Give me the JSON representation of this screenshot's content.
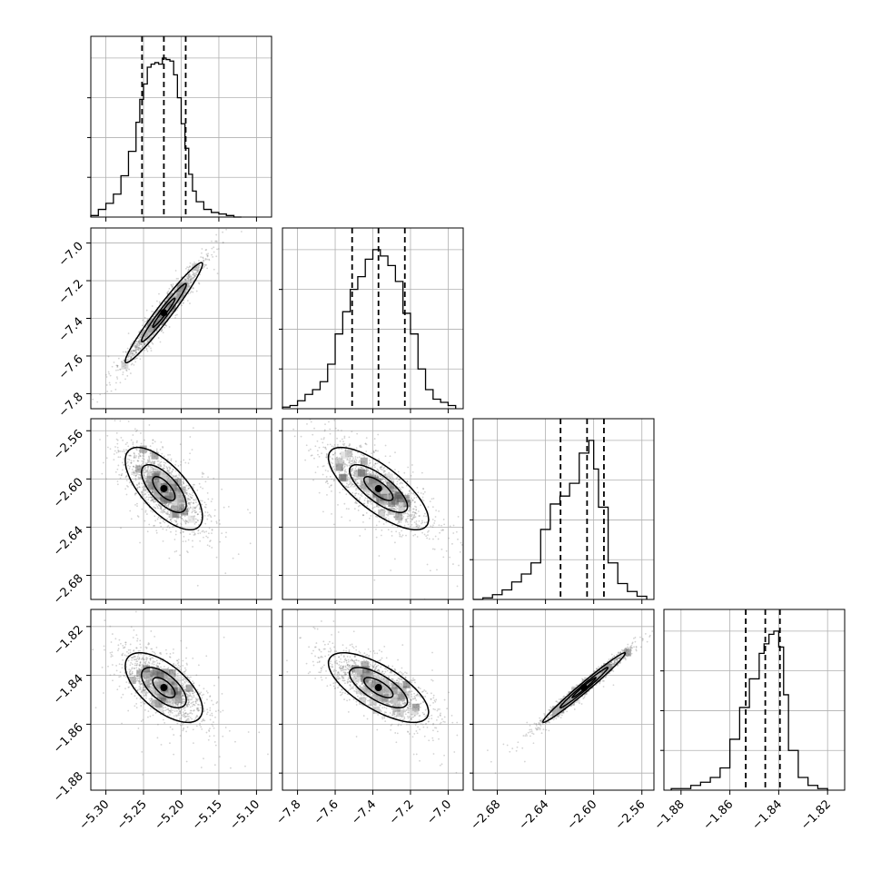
{
  "colors": {
    "hist": "#000000",
    "grid": "#b0b0b0",
    "background": "#ffffff",
    "scatter": "#808080"
  },
  "chart_data": {
    "type": "corner",
    "grid": true,
    "parameters": [
      {
        "range": [
          -5.32,
          -5.08
        ],
        "ticks": [
          -5.3,
          -5.25,
          -5.2,
          -5.15,
          -5.1
        ],
        "tick_labels": [
          "−5.30",
          "−5.25",
          "−5.20",
          "−5.15",
          "−5.10"
        ],
        "quantiles": [
          -5.252,
          -5.223,
          -5.194
        ],
        "hist_bins": [
          -5.32,
          -5.31,
          -5.3,
          -5.29,
          -5.28,
          -5.27,
          -5.26,
          -5.255,
          -5.25,
          -5.245,
          -5.24,
          -5.235,
          -5.23,
          -5.225,
          -5.22,
          -5.215,
          -5.21,
          -5.205,
          -5.2,
          -5.195,
          -5.19,
          -5.185,
          -5.18,
          -5.17,
          -5.16,
          -5.15,
          -5.14,
          -5.13,
          -5.12
        ],
        "hist_counts": [
          0.01,
          0.05,
          0.09,
          0.15,
          0.27,
          0.43,
          0.62,
          0.77,
          0.87,
          0.98,
          1.0,
          1.01,
          1.0,
          1.04,
          1.03,
          1.02,
          0.93,
          0.78,
          0.61,
          0.45,
          0.28,
          0.17,
          0.1,
          0.05,
          0.03,
          0.02,
          0.01,
          0.0
        ]
      },
      {
        "range": [
          -7.88,
          -6.92
        ],
        "ticks": [
          -7.8,
          -7.6,
          -7.4,
          -7.2,
          -7.0
        ],
        "tick_labels": [
          "−7.8",
          "−7.6",
          "−7.4",
          "−7.2",
          "−7.0"
        ],
        "quantiles": [
          -7.51,
          -7.37,
          -7.23
        ],
        "hist_bins": [
          -7.88,
          -7.84,
          -7.8,
          -7.76,
          -7.72,
          -7.68,
          -7.64,
          -7.6,
          -7.56,
          -7.52,
          -7.48,
          -7.44,
          -7.4,
          -7.36,
          -7.32,
          -7.28,
          -7.24,
          -7.2,
          -7.16,
          -7.12,
          -7.08,
          -7.04,
          -7.0,
          -6.96
        ],
        "hist_counts": [
          0.01,
          0.02,
          0.05,
          0.09,
          0.12,
          0.17,
          0.28,
          0.47,
          0.61,
          0.75,
          0.83,
          0.94,
          1.0,
          0.96,
          0.9,
          0.8,
          0.6,
          0.47,
          0.25,
          0.12,
          0.06,
          0.04,
          0.02
        ]
      },
      {
        "range": [
          -2.7,
          -2.55
        ],
        "ticks": [
          -2.68,
          -2.64,
          -2.6,
          -2.56
        ],
        "tick_labels": [
          "−2.68",
          "−2.64",
          "−2.60",
          "−2.56"
        ],
        "quantiles": [
          -2.6275,
          -2.6055,
          -2.5915
        ],
        "hist_bins": [
          -2.7,
          -2.692,
          -2.684,
          -2.676,
          -2.668,
          -2.66,
          -2.652,
          -2.644,
          -2.636,
          -2.628,
          -2.62,
          -2.612,
          -2.604,
          -2.6,
          -2.596,
          -2.588,
          -2.58,
          -2.572,
          -2.564,
          -2.556
        ],
        "hist_counts": [
          0.0,
          0.01,
          0.03,
          0.06,
          0.11,
          0.16,
          0.23,
          0.44,
          0.6,
          0.65,
          0.73,
          0.92,
          1.0,
          0.82,
          0.58,
          0.23,
          0.1,
          0.05,
          0.02
        ]
      },
      {
        "range": [
          -1.887,
          -1.813
        ],
        "ticks": [
          -1.88,
          -1.86,
          -1.84,
          -1.82
        ],
        "tick_labels": [
          "−1.88",
          "−1.86",
          "−1.84",
          "−1.82"
        ],
        "quantiles": [
          -1.8535,
          -1.8455,
          -1.8395
        ],
        "hist_bins": [
          -1.884,
          -1.88,
          -1.876,
          -1.872,
          -1.868,
          -1.864,
          -1.86,
          -1.856,
          -1.852,
          -1.848,
          -1.846,
          -1.844,
          -1.842,
          -1.84,
          -1.838,
          -1.836,
          -1.832,
          -1.828,
          -1.824,
          -1.82
        ],
        "hist_counts": [
          0.01,
          0.01,
          0.03,
          0.05,
          0.08,
          0.14,
          0.32,
          0.52,
          0.7,
          0.86,
          0.92,
          0.98,
          1.0,
          0.9,
          0.6,
          0.25,
          0.08,
          0.03,
          0.01
        ]
      }
    ],
    "pairs": [
      {
        "x": 0,
        "y": 1,
        "center": [
          -5.223,
          -7.37
        ],
        "sigma": [
          0.027,
          0.14
        ],
        "rho": 0.97
      },
      {
        "x": 0,
        "y": 2,
        "center": [
          -5.223,
          -2.608
        ],
        "sigma": [
          0.027,
          0.018
        ],
        "rho": -0.68
      },
      {
        "x": 1,
        "y": 2,
        "center": [
          -7.37,
          -2.608
        ],
        "sigma": [
          0.14,
          0.018
        ],
        "rho": -0.75
      },
      {
        "x": 0,
        "y": 3,
        "center": [
          -5.223,
          -1.845
        ],
        "sigma": [
          0.027,
          0.0075
        ],
        "rho": -0.62
      },
      {
        "x": 1,
        "y": 3,
        "center": [
          -7.37,
          -1.845
        ],
        "sigma": [
          0.14,
          0.0075
        ],
        "rho": -0.7
      },
      {
        "x": 2,
        "y": 3,
        "center": [
          -2.608,
          -1.845
        ],
        "sigma": [
          0.018,
          0.0075
        ],
        "rho": 0.985
      }
    ]
  }
}
